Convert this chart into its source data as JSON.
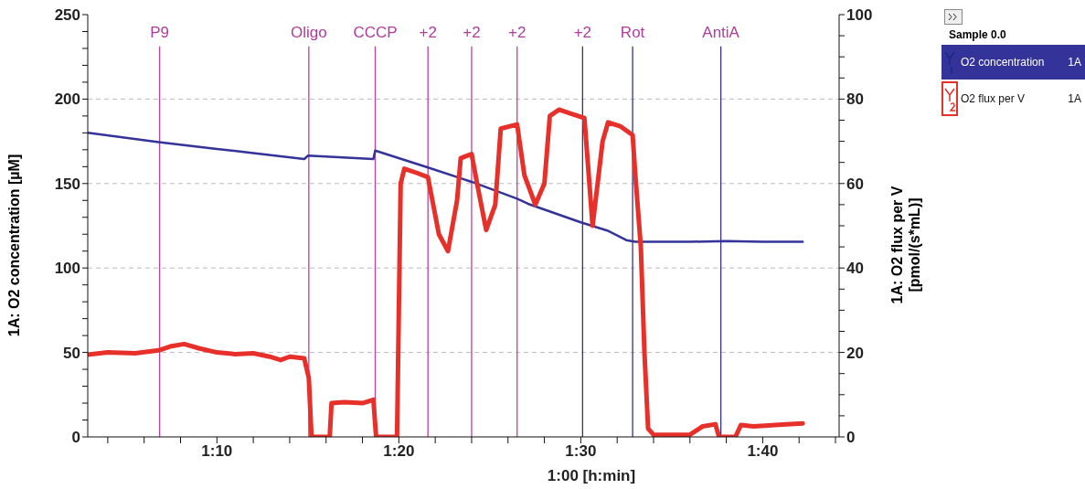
{
  "chart_data": {
    "type": "line",
    "xlabel": "1:00 [h:min]",
    "ylabel": "1A: O2 concentration [µM]",
    "y2label": "1A: O2 flux per V [pmol/(s*mL)]",
    "legend_title": "Sample 0.0",
    "legend": "right",
    "grid": "y",
    "line_style": "solid",
    "marker": "none",
    "xlim": [
      62.9,
      104.2
    ],
    "xticks": [
      {
        "value": 64,
        "label": null
      },
      {
        "value": 66,
        "label": null
      },
      {
        "value": 68,
        "label": null
      },
      {
        "value": 70,
        "label": "1:10"
      },
      {
        "value": 72,
        "label": null
      },
      {
        "value": 74,
        "label": null
      },
      {
        "value": 76,
        "label": null
      },
      {
        "value": 78,
        "label": null
      },
      {
        "value": 80,
        "label": "1:20"
      },
      {
        "value": 82,
        "label": null
      },
      {
        "value": 84,
        "label": null
      },
      {
        "value": 86,
        "label": null
      },
      {
        "value": 88,
        "label": null
      },
      {
        "value": 90,
        "label": "1:30"
      },
      {
        "value": 92,
        "label": null
      },
      {
        "value": 94,
        "label": null
      },
      {
        "value": 96,
        "label": null
      },
      {
        "value": 98,
        "label": null
      },
      {
        "value": 100,
        "label": "1:40"
      },
      {
        "value": 102,
        "label": null
      },
      {
        "value": 104,
        "label": null
      }
    ],
    "ylim": [
      0,
      250
    ],
    "yticks": [
      0,
      {
        "value": 10,
        "label": null
      },
      {
        "value": 20,
        "label": null
      },
      {
        "value": 30,
        "label": null
      },
      {
        "value": 40,
        "label": null
      },
      50,
      {
        "value": 60,
        "label": null
      },
      {
        "value": 70,
        "label": null
      },
      {
        "value": 80,
        "label": null
      },
      {
        "value": 90,
        "label": null
      },
      100,
      {
        "value": 110,
        "label": null
      },
      {
        "value": 120,
        "label": null
      },
      {
        "value": 130,
        "label": null
      },
      {
        "value": 140,
        "label": null
      },
      150,
      {
        "value": 160,
        "label": null
      },
      {
        "value": 170,
        "label": null
      },
      {
        "value": 180,
        "label": null
      },
      {
        "value": 190,
        "label": null
      },
      200,
      {
        "value": 210,
        "label": null
      },
      {
        "value": 220,
        "label": null
      },
      {
        "value": 230,
        "label": null
      },
      {
        "value": 240,
        "label": null
      },
      250
    ],
    "y2lim": [
      0,
      100
    ],
    "y2ticks": [
      0,
      {
        "value": 5,
        "label": null
      },
      {
        "value": 10,
        "label": null
      },
      {
        "value": 15,
        "label": null
      },
      20,
      {
        "value": 25,
        "label": null
      },
      {
        "value": 30,
        "label": null
      },
      {
        "value": 35,
        "label": null
      },
      40,
      {
        "value": 45,
        "label": null
      },
      {
        "value": 50,
        "label": null
      },
      {
        "value": 55,
        "label": null
      },
      60,
      {
        "value": 65,
        "label": null
      },
      {
        "value": 70,
        "label": null
      },
      {
        "value": 75,
        "label": null
      },
      80,
      {
        "value": 85,
        "label": null
      },
      {
        "value": 90,
        "label": null
      },
      {
        "value": 95,
        "label": null
      },
      100
    ],
    "series": [
      {
        "name": "O2 concentration",
        "color": "#333399",
        "x": [
          62.9,
          66.8,
          70,
          72,
          74.8,
          75.0,
          78.6,
          78.7,
          81.6,
          84,
          86.5,
          87.1,
          90,
          91.5,
          92.5,
          93,
          96,
          98,
          100,
          102.2
        ],
        "values": [
          180,
          174.5,
          170.5,
          168,
          164.5,
          166.5,
          164.5,
          169.5,
          159.5,
          151,
          141,
          138,
          127,
          122,
          116.5,
          115.5,
          115.5,
          116,
          115.5,
          115.5
        ]
      },
      {
        "name": "O2 flux per V",
        "color": "#e8302a",
        "axis": "y2",
        "x": [
          62.9,
          64,
          65.5,
          66.8,
          67.5,
          68.2,
          69,
          70,
          71,
          72,
          72.9,
          73.5,
          74,
          74.8,
          75.05,
          75.2,
          76.2,
          76.3,
          77,
          78,
          78.6,
          78.75,
          79.9,
          80.1,
          80.3,
          81,
          81.6,
          82.2,
          82.7,
          83.2,
          83.4,
          84,
          84.3,
          84.8,
          85.3,
          85.6,
          86.5,
          86.9,
          87.5,
          88,
          88.3,
          88.8,
          89.5,
          90.2,
          90.65,
          91.2,
          91.5,
          92.2,
          92.85,
          93,
          93.3,
          93.5,
          93.7,
          94,
          95,
          96,
          96.7,
          97.4,
          97.6,
          98.5,
          98.8,
          99.5,
          101.3,
          102.2
        ],
        "values": [
          19.5,
          20,
          19.8,
          20.5,
          21.5,
          22,
          21,
          20,
          19.6,
          19.8,
          19,
          18.2,
          19,
          18.6,
          14,
          0,
          0,
          8,
          8.2,
          8,
          8.8,
          0,
          0,
          60,
          63.5,
          62.5,
          61.5,
          48,
          44,
          56,
          66,
          67,
          60,
          49,
          55,
          73,
          74,
          62,
          55,
          60,
          76,
          77.5,
          76.5,
          75.5,
          50,
          70,
          74.5,
          73.5,
          71.5,
          62,
          45,
          20,
          2,
          0.5,
          0.5,
          0.5,
          2.5,
          3,
          0,
          0,
          2.8,
          2.5,
          3,
          3.2
        ]
      }
    ],
    "ref_lines": [
      {
        "axis": "x",
        "value": 66.85,
        "color": "#c040a0"
      },
      {
        "axis": "x",
        "value": 75.05,
        "color": "#c040a0"
      },
      {
        "axis": "x",
        "value": 78.7,
        "color": "#c040a0"
      },
      {
        "axis": "x",
        "value": 81.6,
        "color": "#c040a0"
      },
      {
        "axis": "x",
        "value": 84.0,
        "color": "#c040a0"
      },
      {
        "axis": "x",
        "value": 86.5,
        "color": "#c040a0"
      },
      {
        "axis": "x",
        "value": 90.1,
        "color": "#333380"
      },
      {
        "axis": "x",
        "value": 92.85,
        "color": "#333380"
      },
      {
        "axis": "x",
        "value": 97.7,
        "color": "#333380"
      }
    ],
    "annotations": [
      "1A",
      "1A",
      "P9",
      "Oligo",
      "CCCP",
      "+2",
      "+2",
      "+2",
      "+2",
      "Rot",
      "AntiA"
    ]
  }
}
